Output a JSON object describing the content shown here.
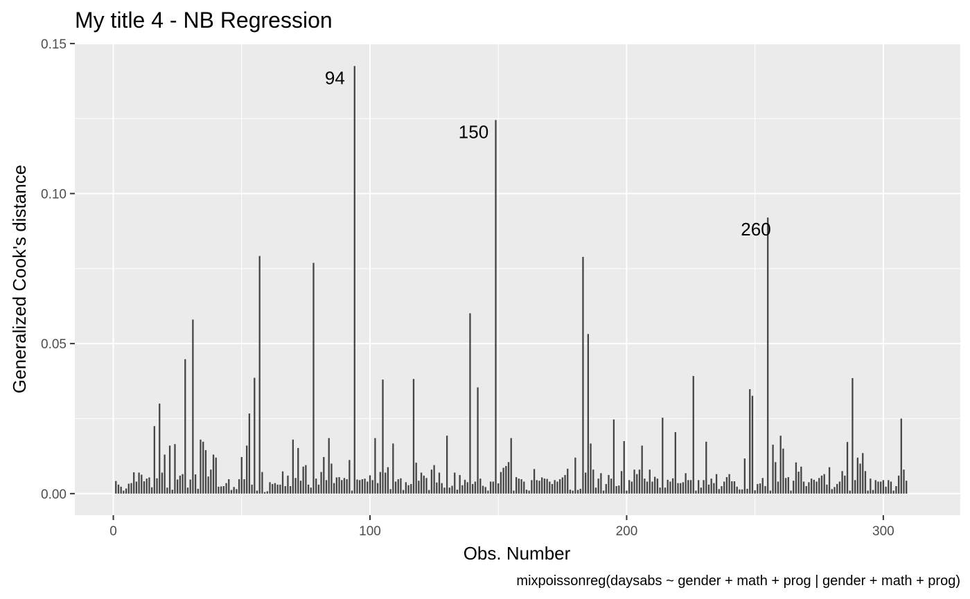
{
  "chart_data": {
    "type": "bar",
    "title": "My title 4 - NB Regression",
    "xlabel": "Obs. Number",
    "ylabel": "Generalized Cook's distance",
    "caption": "mixpoissonreg(daysabs ~ gender + math + prog | gender + math + prog)",
    "xlim": [
      -15,
      330
    ],
    "ylim": [
      -0.0072,
      0.1502
    ],
    "x_ticks": [
      0,
      100,
      200,
      300
    ],
    "x_tick_labels": [
      "0",
      "100",
      "200",
      "300"
    ],
    "y_ticks": [
      0.0,
      0.05,
      0.1,
      0.15
    ],
    "y_tick_labels": [
      "0.00",
      "0.05",
      "0.10",
      "0.15"
    ],
    "grid": true,
    "bar_color": "#454545",
    "panel_color": "#ebebeb",
    "annotations": [
      {
        "label": "94",
        "x": 94,
        "y": 0.1425
      },
      {
        "label": "150",
        "x": 150,
        "y": 0.1245
      },
      {
        "label": "260",
        "x": 260,
        "y": 0.092
      }
    ],
    "values": [
      0.0042,
      0.003,
      0.0023,
      0.001,
      0.0017,
      0.0033,
      0.0035,
      0.0071,
      0.004,
      0.007,
      0.0063,
      0.0041,
      0.005,
      0.0054,
      0.0021,
      0.0225,
      0.0051,
      0.03,
      0.007,
      0.013,
      0.002,
      0.016,
      0.0013,
      0.0165,
      0.0047,
      0.006,
      0.0065,
      0.0448,
      0.002,
      0.0047,
      0.058,
      0.0064,
      0.0016,
      0.018,
      0.0173,
      0.0145,
      0.0057,
      0.008,
      0.013,
      0.012,
      0.0023,
      0.0024,
      0.0025,
      0.0035,
      0.0048,
      0.0012,
      0.0022,
      0.0015,
      0.0048,
      0.0122,
      0.0048,
      0.016,
      0.0267,
      0.003,
      0.0386,
      0.001,
      0.0792,
      0.0072,
      0.0005,
      0.0008,
      0.0038,
      0.0032,
      0.0035,
      0.003,
      0.003,
      0.0074,
      0.0025,
      0.006,
      0.0025,
      0.018,
      0.0052,
      0.0152,
      0.0043,
      0.009,
      0.0095,
      0.003,
      0.002,
      0.0769,
      0.005,
      0.003,
      0.0072,
      0.0122,
      0.0045,
      0.0185,
      0.01,
      0.0035,
      0.0054,
      0.0055,
      0.0045,
      0.0052,
      0.0048,
      0.0112,
      0.001,
      0.1425,
      0.0047,
      0.0045,
      0.0048,
      0.005,
      0.004,
      0.0061,
      0.0045,
      0.0185,
      0.0035,
      0.0072,
      0.038,
      0.007,
      0.0088,
      0.0015,
      0.0167,
      0.004,
      0.0048,
      0.0051,
      0.0012,
      0.0038,
      0.0028,
      0.0032,
      0.0382,
      0.0103,
      0.0043,
      0.007,
      0.006,
      0.0052,
      0.0012,
      0.008,
      0.0095,
      0.0037,
      0.007,
      0.0035,
      0.002,
      0.0193,
      0.002,
      0.0026,
      0.007,
      0.0013,
      0.0062,
      0.0028,
      0.0046,
      0.0038,
      0.0601,
      0.0032,
      0.004,
      0.0354,
      0.005,
      0.0026,
      0.0022,
      0.001,
      0.004,
      0.004,
      0.1245,
      0.0034,
      0.0072,
      0.0086,
      0.0092,
      0.0105,
      0.0185,
      0.001,
      0.0055,
      0.005,
      0.0048,
      0.004,
      0.0013,
      0.001,
      0.0045,
      0.0082,
      0.0045,
      0.0043,
      0.0054,
      0.005,
      0.0049,
      0.004,
      0.0032,
      0.0045,
      0.004,
      0.0048,
      0.0054,
      0.0062,
      0.0083,
      0.0013,
      0.001,
      0.012,
      0.0012,
      0.0016,
      0.0789,
      0.007,
      0.0532,
      0.0167,
      0.008,
      0.002,
      0.005,
      0.0068,
      0.001,
      0.0032,
      0.0062,
      0.005,
      0.0247,
      0.0025,
      0.0027,
      0.0075,
      0.0175,
      0.001,
      0.0045,
      0.004,
      0.008,
      0.0065,
      0.008,
      0.016,
      0.005,
      0.004,
      0.008,
      0.004,
      0.0056,
      0.005,
      0.002,
      0.0253,
      0.002,
      0.0046,
      0.004,
      0.0051,
      0.0205,
      0.0035,
      0.0035,
      0.0038,
      0.0068,
      0.0045,
      0.0045,
      0.0392,
      0.001,
      0.0045,
      0.002,
      0.0045,
      0.0173,
      0.003,
      0.005,
      0.0035,
      0.0065,
      0.0015,
      0.0025,
      0.004,
      0.0055,
      0.0065,
      0.0041,
      0.0041,
      0.0023,
      0.0014,
      0.0014,
      0.0117,
      0.0016,
      0.0348,
      0.0326,
      0.0011,
      0.0032,
      0.0034,
      0.0052,
      0.0025,
      0.092,
      0.001,
      0.0163,
      0.0105,
      0.004,
      0.0193,
      0.015,
      0.0052,
      0.0055,
      0.001,
      0.0043,
      0.0104,
      0.0073,
      0.009,
      0.004,
      0.0025,
      0.0038,
      0.005,
      0.0046,
      0.004,
      0.0052,
      0.006,
      0.0065,
      0.003,
      0.0088,
      0.0015,
      0.0022,
      0.0032,
      0.004,
      0.0075,
      0.006,
      0.0172,
      0.001,
      0.0385,
      0.0045,
      0.012,
      0.01,
      0.0135,
      0.0075,
      0.001,
      0.005,
      0.0012,
      0.0045,
      0.004,
      0.004,
      0.0045,
      0.0023,
      0.0045,
      0.004,
      0.001,
      0.0025,
      0.006,
      0.025,
      0.008,
      0.0043
    ]
  }
}
